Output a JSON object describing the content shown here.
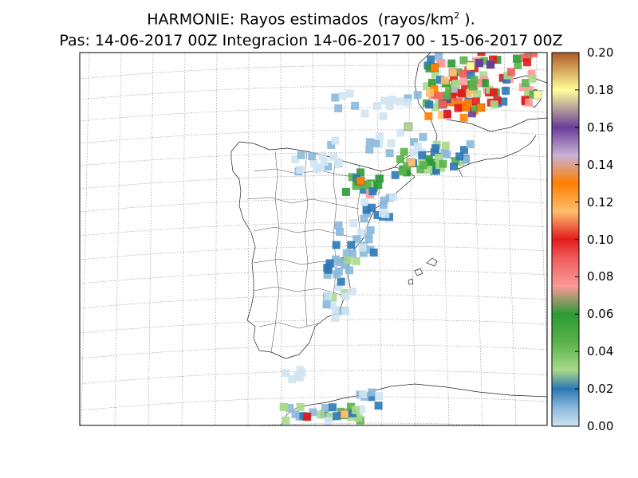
{
  "title": {
    "line1_prefix": "HARMONIE: Rayos estimados  (rayos/km",
    "line1_sup": "2",
    "line1_suffix": " ).",
    "line2": "Pas: 14-06-2017 00Z Integracion 14-06-2017 00 - 15-06-2017 00Z"
  },
  "colorbar": {
    "min": 0,
    "max": 0.2,
    "tick_labels": [
      "0.00",
      "0.02",
      "0.04",
      "0.06",
      "0.08",
      "0.10",
      "0.12",
      "0.14",
      "0.16",
      "0.18",
      "0.20"
    ],
    "color_stops": [
      {
        "v": 0.0,
        "c": "#cfe4f2"
      },
      {
        "v": 0.01,
        "c": "#8ab8dc"
      },
      {
        "v": 0.02,
        "c": "#2b78b5"
      },
      {
        "v": 0.03,
        "c": "#a9d98b"
      },
      {
        "v": 0.045,
        "c": "#59b24a"
      },
      {
        "v": 0.06,
        "c": "#2c9a34"
      },
      {
        "v": 0.075,
        "c": "#fb9a99"
      },
      {
        "v": 0.09,
        "c": "#f05c5c"
      },
      {
        "v": 0.1,
        "c": "#e31a1c"
      },
      {
        "v": 0.115,
        "c": "#fdbf6f"
      },
      {
        "v": 0.13,
        "c": "#ff7f00"
      },
      {
        "v": 0.145,
        "c": "#cab2d6"
      },
      {
        "v": 0.16,
        "c": "#6a3d9a"
      },
      {
        "v": 0.18,
        "c": "#ffff99"
      },
      {
        "v": 0.2,
        "c": "#b15928"
      }
    ]
  }
}
